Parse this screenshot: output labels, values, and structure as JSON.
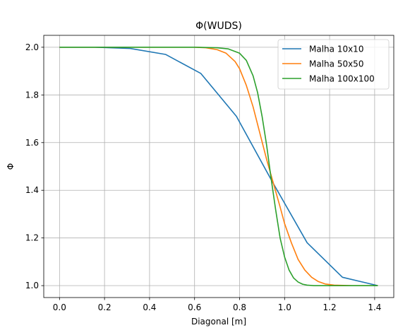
{
  "chart_data": {
    "type": "line",
    "title": "Φ(WUDS)",
    "xlabel": "Diagonal [m]",
    "ylabel": "Φ",
    "xlim": [
      -0.07,
      1.485
    ],
    "ylim": [
      0.95,
      2.05
    ],
    "xticks": [
      0.0,
      0.2,
      0.4,
      0.6,
      0.8,
      1.0,
      1.2,
      1.4
    ],
    "xtick_labels": [
      "0.0",
      "0.2",
      "0.4",
      "0.6",
      "0.8",
      "1.0",
      "1.2",
      "1.4"
    ],
    "yticks": [
      1.0,
      1.2,
      1.4,
      1.6,
      1.8,
      2.0
    ],
    "ytick_labels": [
      "1.0",
      "1.2",
      "1.4",
      "1.6",
      "1.8",
      "2.0"
    ],
    "grid": true,
    "legend_position": "top-right",
    "series": [
      {
        "name": "Malha 10x10",
        "color": "#1f77b4",
        "x": [
          0.0,
          0.157,
          0.314,
          0.471,
          0.628,
          0.786,
          0.943,
          1.1,
          1.257,
          1.414
        ],
        "y": [
          2.0,
          2.0,
          1.995,
          1.97,
          1.89,
          1.71,
          1.44,
          1.18,
          1.035,
          1.0
        ]
      },
      {
        "name": "Malha 50x50",
        "color": "#ff7f0e",
        "x": [
          0.0,
          0.1,
          0.2,
          0.3,
          0.4,
          0.5,
          0.6,
          0.65,
          0.7,
          0.74,
          0.78,
          0.8,
          0.83,
          0.86,
          0.89,
          0.92,
          0.95,
          0.98,
          1.0,
          1.03,
          1.06,
          1.09,
          1.12,
          1.15,
          1.18,
          1.22,
          1.26,
          1.3,
          1.35,
          1.414
        ],
        "y": [
          2.0,
          2.0,
          2.0,
          2.0,
          2.0,
          2.0,
          2.0,
          1.998,
          1.99,
          1.975,
          1.94,
          1.91,
          1.84,
          1.75,
          1.64,
          1.53,
          1.43,
          1.33,
          1.26,
          1.18,
          1.11,
          1.065,
          1.035,
          1.017,
          1.007,
          1.002,
          1.001,
          1.0,
          1.0,
          1.0
        ]
      },
      {
        "name": "Malha 100x100",
        "color": "#2ca02c",
        "x": [
          0.0,
          0.1,
          0.2,
          0.3,
          0.4,
          0.5,
          0.6,
          0.7,
          0.75,
          0.8,
          0.83,
          0.86,
          0.88,
          0.9,
          0.92,
          0.94,
          0.96,
          0.98,
          1.0,
          1.02,
          1.04,
          1.06,
          1.08,
          1.1,
          1.13,
          1.17,
          1.22,
          1.3,
          1.414
        ],
        "y": [
          2.0,
          2.0,
          2.0,
          2.0,
          2.0,
          2.0,
          2.0,
          1.998,
          1.993,
          1.975,
          1.945,
          1.88,
          1.81,
          1.71,
          1.59,
          1.45,
          1.32,
          1.2,
          1.12,
          1.065,
          1.032,
          1.015,
          1.006,
          1.002,
          1.0,
          1.0,
          1.0,
          1.0,
          1.0
        ]
      }
    ]
  }
}
